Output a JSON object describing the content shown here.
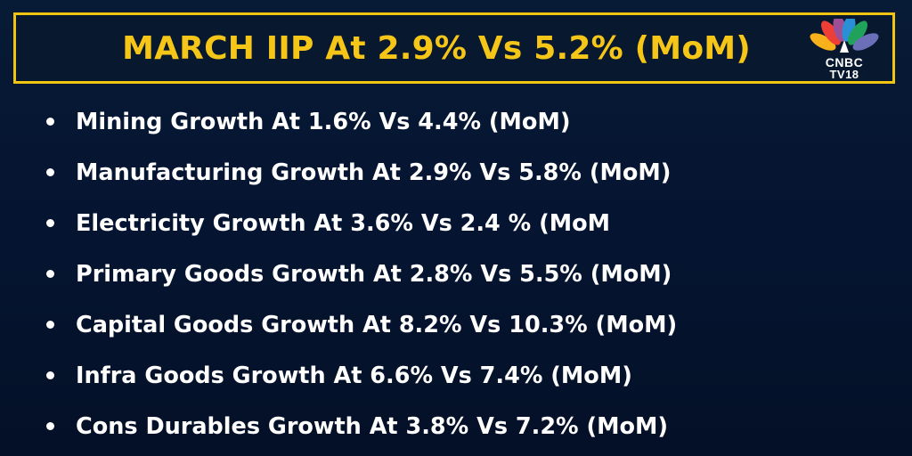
{
  "headline": "MARCH IIP At 2.9% Vs 5.2% (MoM)",
  "logo": {
    "icon": "nbc-peacock-icon",
    "line1": "CNBC",
    "line2": "TV18"
  },
  "colors": {
    "background": "#051430",
    "accent": "#f5c518",
    "text": "#ffffff"
  },
  "bullets": [
    "Mining Growth At 1.6% Vs 4.4% (MoM)",
    "Manufacturing Growth At 2.9% Vs 5.8% (MoM)",
    "Electricity Growth At 3.6% Vs 2.4 % (MoM",
    "Primary Goods Growth At 2.8% Vs 5.5% (MoM)",
    "Capital Goods Growth At 8.2% Vs 10.3% (MoM)",
    "Infra Goods Growth At 6.6% Vs 7.4% (MoM)",
    "Cons Durables Growth At 3.8% Vs 7.2% (MoM)"
  ]
}
